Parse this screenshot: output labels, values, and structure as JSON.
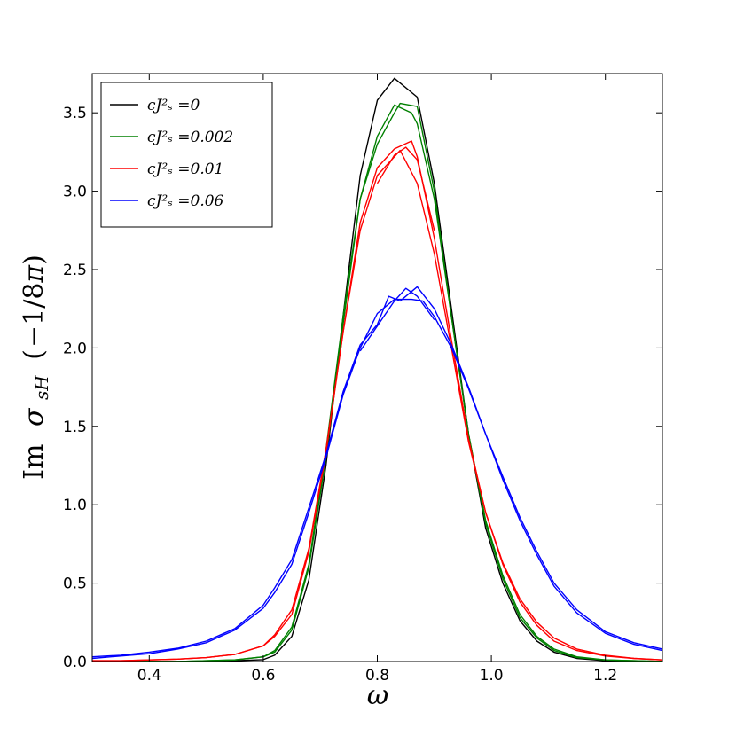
{
  "chart_data": {
    "type": "line",
    "xlabel": "ω",
    "ylabel": "Im σ_sH (−1/8π)",
    "xlim": [
      0.3,
      1.3
    ],
    "ylim": [
      0.0,
      3.75
    ],
    "xticks": [
      "0.4",
      "0.6",
      "0.8",
      "1.0",
      "1.2"
    ],
    "yticks": [
      "0.0",
      "0.5",
      "1.0",
      "1.5",
      "2.0",
      "2.5",
      "3.0",
      "3.5"
    ],
    "grid": false,
    "legend_position": "top-left",
    "series": [
      {
        "name": "cJ_s^2 =0",
        "legend": "cJ²ₛ =0",
        "color": "#000000",
        "runs": [
          {
            "x": [
              0.3,
              0.35,
              0.4,
              0.45,
              0.5,
              0.55,
              0.6,
              0.62,
              0.65,
              0.68,
              0.71,
              0.74,
              0.77,
              0.8,
              0.83,
              0.87,
              0.9,
              0.93,
              0.96,
              0.99,
              1.02,
              1.05,
              1.08,
              1.11,
              1.15,
              1.2,
              1.25,
              1.3
            ],
            "y": [
              0.0,
              0.0,
              0.0,
              0.0,
              0.0,
              0.005,
              0.012,
              0.04,
              0.16,
              0.52,
              1.25,
              2.2,
              3.1,
              3.58,
              3.72,
              3.6,
              3.05,
              2.25,
              1.45,
              0.85,
              0.5,
              0.26,
              0.13,
              0.06,
              0.02,
              0.005,
              0.0,
              0.0
            ]
          }
        ]
      },
      {
        "name": "cJ_s^2 =0.002",
        "legend": "cJ²ₛ =0.002",
        "color": "#008000",
        "runs": [
          {
            "x": [
              0.3,
              0.35,
              0.4,
              0.45,
              0.5,
              0.55,
              0.6,
              0.62,
              0.65,
              0.68,
              0.71,
              0.74,
              0.77,
              0.8,
              0.83,
              0.84,
              0.87,
              0.9,
              0.93,
              0.96,
              0.99,
              1.02,
              1.05,
              1.08,
              1.11,
              1.15,
              1.2,
              1.25,
              1.3
            ],
            "y": [
              0.0,
              0.0,
              0.0,
              0.0,
              0.005,
              0.01,
              0.03,
              0.07,
              0.22,
              0.62,
              1.35,
              2.2,
              2.95,
              3.3,
              3.5,
              3.56,
              3.54,
              3.0,
              2.2,
              1.45,
              0.9,
              0.55,
              0.3,
              0.16,
              0.08,
              0.03,
              0.01,
              0.005,
              0.0
            ]
          },
          {
            "x": [
              0.3,
              0.35,
              0.4,
              0.45,
              0.5,
              0.55,
              0.6,
              0.62,
              0.65,
              0.68,
              0.71,
              0.74,
              0.77,
              0.8,
              0.83,
              0.86,
              0.87,
              0.9,
              0.93,
              0.96,
              0.99,
              1.02,
              1.05,
              1.08,
              1.11,
              1.15,
              1.2,
              1.25,
              1.3
            ],
            "y": [
              0.0,
              0.0,
              0.0,
              0.0,
              0.005,
              0.01,
              0.03,
              0.06,
              0.2,
              0.6,
              1.3,
              2.15,
              2.95,
              3.35,
              3.55,
              3.5,
              3.43,
              2.95,
              2.2,
              1.45,
              0.88,
              0.53,
              0.28,
              0.15,
              0.07,
              0.025,
              0.01,
              0.005,
              0.0
            ]
          }
        ]
      },
      {
        "name": "cJ_s^2 =0.01",
        "legend": "cJ²ₛ =0.01",
        "color": "#ff0000",
        "runs": [
          {
            "x": [
              0.3,
              0.35,
              0.4,
              0.45,
              0.5,
              0.55,
              0.6,
              0.62,
              0.65,
              0.68,
              0.71,
              0.74,
              0.77,
              0.8,
              0.84,
              0.87,
              0.9,
              0.93,
              0.96,
              0.99,
              1.02,
              1.05,
              1.08,
              1.11,
              1.15,
              1.2,
              1.25,
              1.3
            ],
            "y": [
              0.005,
              0.005,
              0.01,
              0.015,
              0.025,
              0.045,
              0.1,
              0.17,
              0.33,
              0.72,
              1.35,
              2.1,
              2.75,
              3.1,
              3.26,
              3.05,
              2.6,
              2.0,
              1.4,
              0.95,
              0.63,
              0.4,
              0.25,
              0.15,
              0.08,
              0.04,
              0.02,
              0.01
            ]
          },
          {
            "x": [
              0.3,
              0.35,
              0.4,
              0.45,
              0.5,
              0.55,
              0.6,
              0.62,
              0.65,
              0.68,
              0.71,
              0.74,
              0.77,
              0.8,
              0.83,
              0.86,
              0.87,
              0.9,
              0.93,
              0.96,
              0.99,
              1.02,
              1.05,
              1.08,
              1.11,
              1.15,
              1.2,
              1.25,
              1.3
            ],
            "y": [
              0.005,
              0.005,
              0.01,
              0.015,
              0.025,
              0.045,
              0.1,
              0.16,
              0.3,
              0.7,
              1.33,
              2.1,
              2.8,
              3.15,
              3.27,
              3.32,
              3.22,
              2.7,
              2.05,
              1.42,
              0.95,
              0.62,
              0.38,
              0.23,
              0.13,
              0.07,
              0.035,
              0.02,
              0.01
            ]
          },
          {
            "x": [
              0.8,
              0.83,
              0.85,
              0.87,
              0.9
            ],
            "y": [
              3.05,
              3.23,
              3.28,
              3.2,
              2.75
            ]
          }
        ]
      },
      {
        "name": "cJ_s^2 =0.06",
        "legend": "cJ²ₛ =0.06",
        "color": "#0000ff",
        "runs": [
          {
            "x": [
              0.3,
              0.35,
              0.4,
              0.45,
              0.5,
              0.55,
              0.6,
              0.62,
              0.65,
              0.68,
              0.71,
              0.74,
              0.77,
              0.8,
              0.83,
              0.86,
              0.88,
              0.9,
              0.93,
              0.96,
              0.99,
              1.02,
              1.05,
              1.08,
              1.11,
              1.15,
              1.2,
              1.25,
              1.3
            ],
            "y": [
              0.02,
              0.035,
              0.05,
              0.08,
              0.12,
              0.2,
              0.34,
              0.44,
              0.62,
              0.95,
              1.3,
              1.7,
              2.0,
              2.22,
              2.31,
              2.31,
              2.3,
              2.2,
              2.0,
              1.74,
              1.45,
              1.18,
              0.92,
              0.7,
              0.5,
              0.33,
              0.19,
              0.12,
              0.08
            ]
          },
          {
            "x": [
              0.3,
              0.35,
              0.4,
              0.45,
              0.5,
              0.55,
              0.6,
              0.62,
              0.65,
              0.68,
              0.71,
              0.74,
              0.77,
              0.8,
              0.82,
              0.84,
              0.87,
              0.9,
              0.93,
              0.96,
              0.99,
              1.02,
              1.05,
              1.08,
              1.11,
              1.15,
              1.2,
              1.25,
              1.3
            ],
            "y": [
              0.03,
              0.04,
              0.06,
              0.085,
              0.13,
              0.21,
              0.36,
              0.47,
              0.65,
              0.98,
              1.32,
              1.72,
              2.02,
              2.15,
              2.33,
              2.3,
              2.39,
              2.25,
              2.02,
              1.75,
              1.45,
              1.16,
              0.9,
              0.68,
              0.48,
              0.31,
              0.18,
              0.11,
              0.07
            ]
          },
          {
            "x": [
              0.77,
              0.8,
              0.83,
              0.85,
              0.87,
              0.9
            ],
            "y": [
              1.98,
              2.14,
              2.3,
              2.38,
              2.33,
              2.18
            ]
          }
        ]
      }
    ]
  }
}
